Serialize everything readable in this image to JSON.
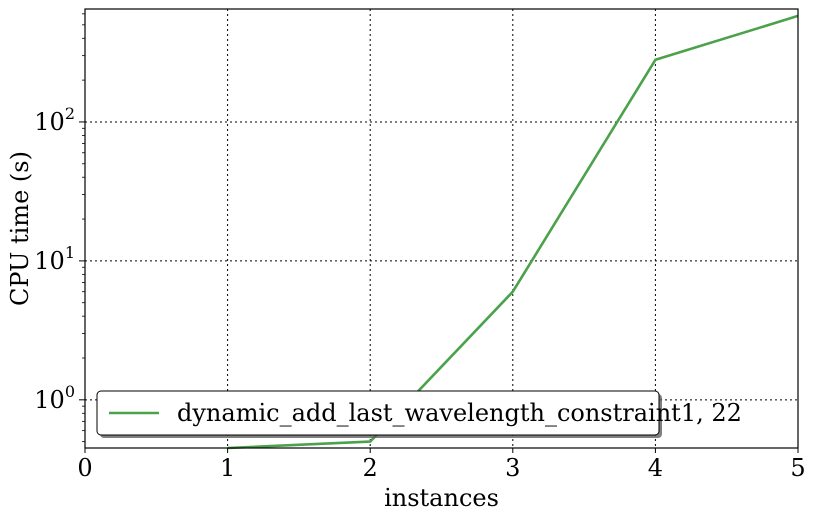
{
  "chart_data": {
    "type": "line",
    "xlabel": "instances",
    "ylabel": "CPU time (s)",
    "y_scale": "log",
    "xlim": [
      0,
      5
    ],
    "ylim": [
      0.45,
      650
    ],
    "grid": true,
    "legend_position": "lower-left",
    "x_ticks": [
      "0",
      "1",
      "2",
      "3",
      "4",
      "5"
    ],
    "x_tick_values": [
      0,
      1,
      2,
      3,
      4,
      5
    ],
    "y_ticks": [
      {
        "value": 1,
        "base": "10",
        "exp": "0"
      },
      {
        "value": 10,
        "base": "10",
        "exp": "1"
      },
      {
        "value": 100,
        "base": "10",
        "exp": "2"
      }
    ],
    "series": [
      {
        "name": "dynamic_add_last_wavelength_constraint1, 22",
        "color": "#4ba24b",
        "x": [
          1,
          2,
          3,
          4,
          5
        ],
        "y": [
          0.45,
          0.5,
          6,
          280,
          580
        ]
      }
    ]
  }
}
